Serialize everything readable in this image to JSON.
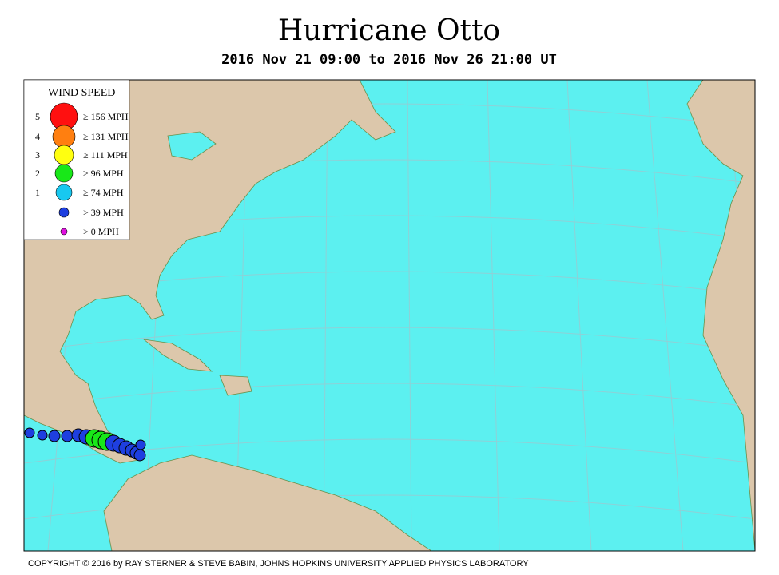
{
  "header": {
    "title": "Hurricane Otto",
    "subtitle": "2016 Nov 21 09:00 to 2016 Nov 26 21:00 UT"
  },
  "legend": {
    "title": "WIND SPEED",
    "entries": [
      {
        "category": "5",
        "label": "≥ 156 MPH"
      },
      {
        "category": "4",
        "label": "≥ 131 MPH"
      },
      {
        "category": "3",
        "label": "≥ 111 MPH"
      },
      {
        "category": "2",
        "label": "≥ 96 MPH"
      },
      {
        "category": "1",
        "label": "≥ 74 MPH"
      },
      {
        "label": "> 39 MPH"
      },
      {
        "label": "> 0 MPH"
      }
    ]
  },
  "footer": {
    "copyright": "COPYRIGHT © 2016 by RAY STERNER & STEVE BABIN, JOHNS HOPKINS UNIVERSITY APPLIED PHYSICS LABORATORY"
  }
}
